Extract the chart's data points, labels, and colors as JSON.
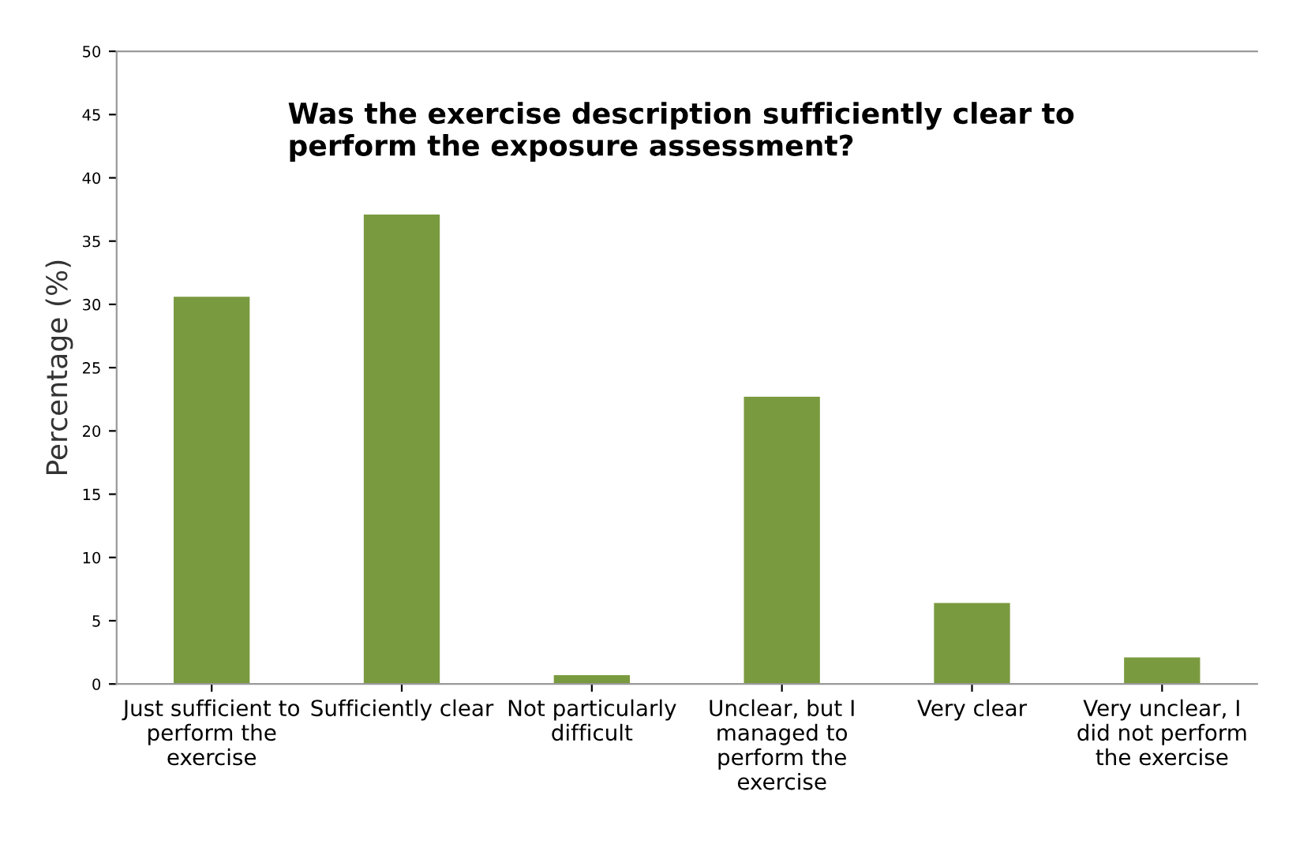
{
  "chart_data": {
    "type": "bar",
    "title": "Was the exercise description sufficiently clear to\nperform the exposure assessment?",
    "ylabel": "Percentage (%)",
    "categories": [
      "Just sufficient to\nperform the\nexercise",
      "Sufficiently clear",
      "Not particularly\ndifficult",
      "Unclear, but I\nmanaged to\nperform the\nexercise",
      "Very clear",
      "Very unclear, I\ndid not perform\nthe exercise"
    ],
    "values": [
      30.6,
      37.1,
      0.7,
      22.7,
      6.4,
      2.1
    ],
    "color": "#7a9a3f",
    "ylim": [
      0,
      50
    ],
    "yticks": [
      0,
      5,
      10,
      15,
      20,
      25,
      30,
      35,
      40,
      45,
      50
    ],
    "grid": false
  }
}
